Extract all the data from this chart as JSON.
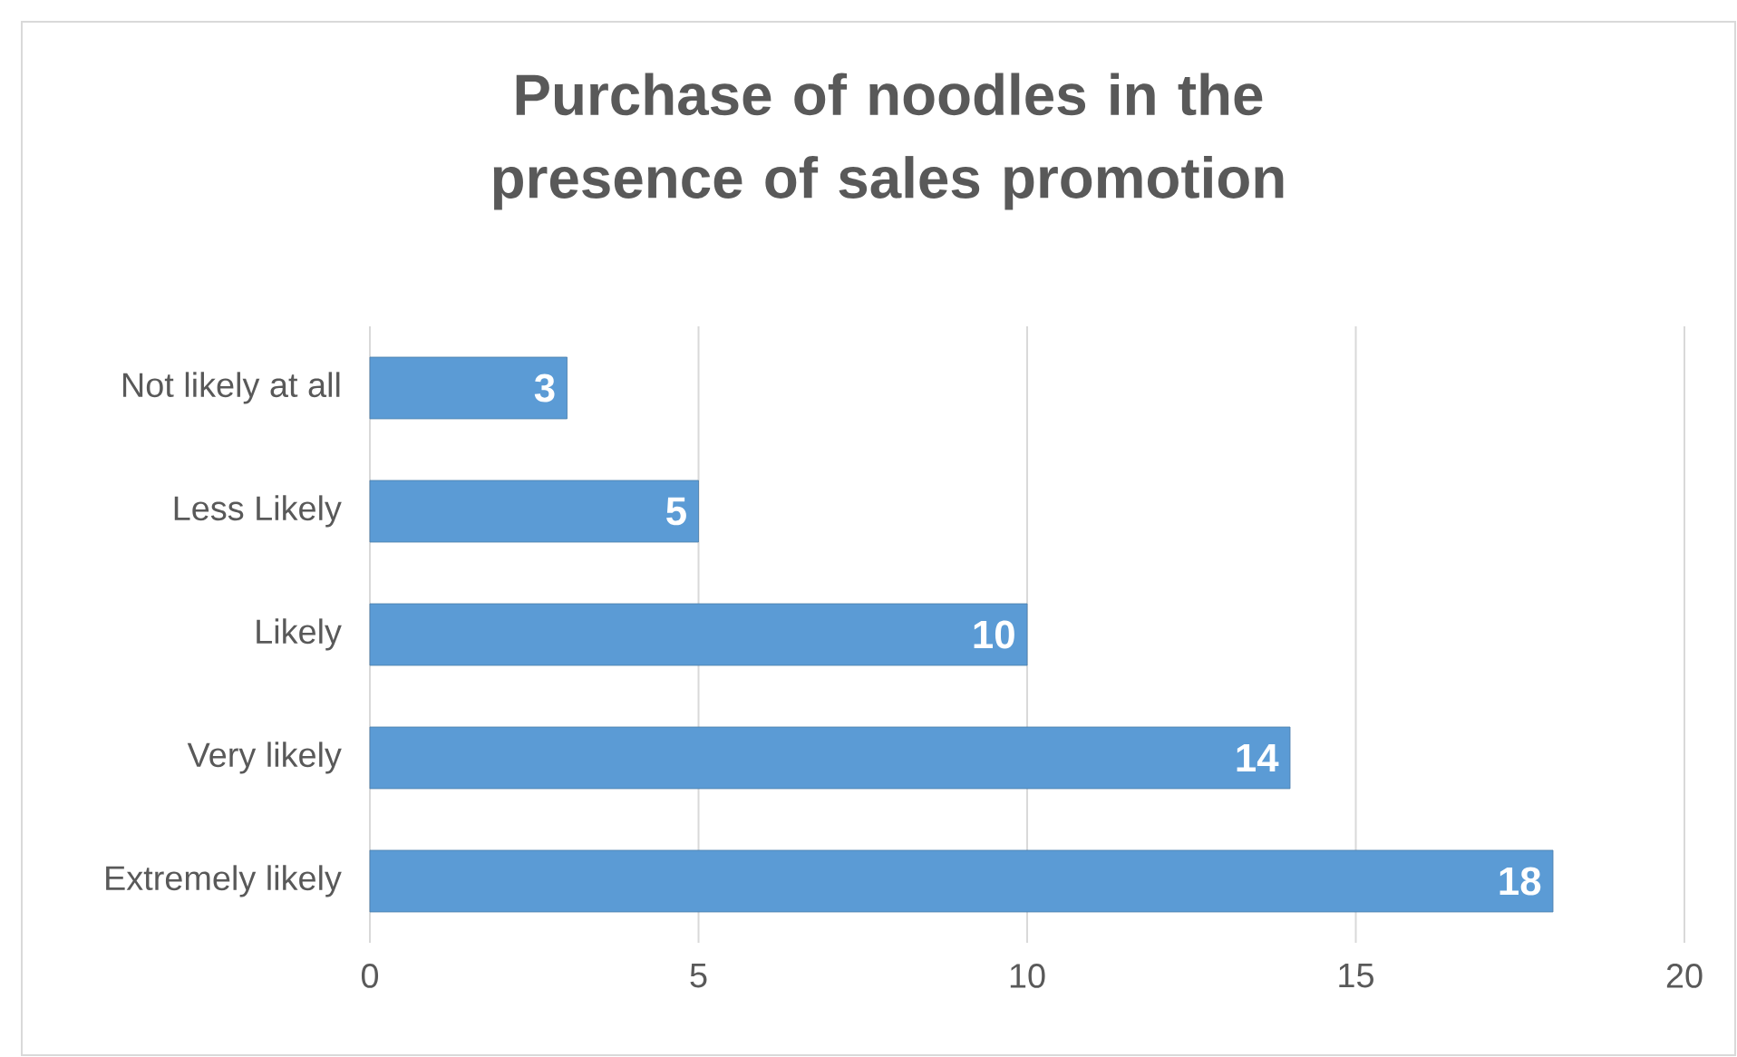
{
  "chart_data": {
    "type": "bar",
    "orientation": "horizontal",
    "title": "Purchase of noodles in the presence of sales promotion",
    "categories": [
      "Not likely at all",
      "Less Likely",
      "Likely",
      "Very likely",
      "Extremely likely"
    ],
    "values": [
      3,
      5,
      10,
      14,
      18
    ],
    "color": "#5b9bd5",
    "xlim": [
      0,
      20
    ],
    "xticks": [
      0,
      5,
      10,
      15,
      20
    ],
    "grid": "x",
    "data_labels": true
  }
}
